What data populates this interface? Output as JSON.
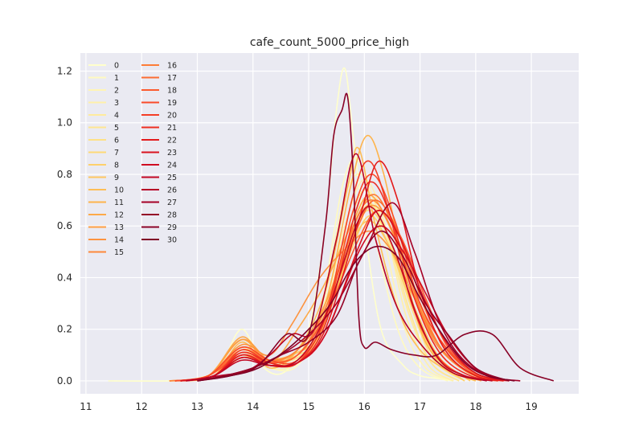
{
  "chart_data": {
    "type": "line",
    "title": "cafe_count_5000_price_high",
    "xlabel": "",
    "ylabel": "",
    "xlim": [
      10.9,
      19.85
    ],
    "ylim": [
      -0.05,
      1.27
    ],
    "xticks": [
      11,
      12,
      13,
      14,
      15,
      16,
      17,
      18,
      19
    ],
    "yticks": [
      0.0,
      0.2,
      0.4,
      0.6,
      0.8,
      1.0,
      1.2
    ],
    "xtick_labels": [
      "11",
      "12",
      "13",
      "14",
      "15",
      "16",
      "17",
      "18",
      "19"
    ],
    "ytick_labels": [
      "0.0",
      "0.2",
      "0.4",
      "0.6",
      "0.8",
      "1.0",
      "1.2"
    ],
    "grid": true,
    "legend_position": "top-left, two columns",
    "colormap": "YlOrRd",
    "series": [
      {
        "name": "0",
        "color": "#ffffcc",
        "x": [
          11.4,
          12.5,
          13.0,
          13.4,
          13.8,
          14.2,
          14.6,
          15.0,
          15.3,
          15.5,
          15.65,
          15.8,
          16.0,
          16.3,
          16.7,
          17.0,
          17.3,
          17.6
        ],
        "y": [
          0.0,
          0.0,
          0.01,
          0.05,
          0.2,
          0.05,
          0.04,
          0.2,
          0.6,
          1.05,
          1.21,
          0.95,
          0.6,
          0.2,
          0.06,
          0.02,
          0.01,
          0.0
        ]
      },
      {
        "name": "1",
        "color": "#fffac0",
        "x": [
          12.6,
          13.2,
          13.8,
          14.3,
          14.8,
          15.2,
          15.6,
          15.9,
          16.2,
          16.6,
          17.0,
          17.5
        ],
        "y": [
          0.0,
          0.02,
          0.12,
          0.05,
          0.06,
          0.25,
          0.75,
          0.85,
          0.55,
          0.2,
          0.05,
          0.0
        ]
      },
      {
        "name": "2",
        "color": "#fff5b4",
        "x": [
          12.7,
          13.3,
          13.8,
          14.3,
          14.8,
          15.2,
          15.6,
          15.95,
          16.3,
          16.7,
          17.1,
          17.6
        ],
        "y": [
          0.0,
          0.02,
          0.13,
          0.05,
          0.07,
          0.22,
          0.68,
          0.8,
          0.6,
          0.22,
          0.05,
          0.0
        ]
      },
      {
        "name": "3",
        "color": "#fff0a9",
        "x": [
          12.7,
          13.3,
          13.8,
          14.3,
          14.8,
          15.2,
          15.65,
          16.0,
          16.35,
          16.75,
          17.15,
          17.6
        ],
        "y": [
          0.0,
          0.02,
          0.12,
          0.06,
          0.07,
          0.2,
          0.6,
          0.78,
          0.62,
          0.25,
          0.06,
          0.0
        ]
      },
      {
        "name": "4",
        "color": "#ffeb9d",
        "x": [
          12.8,
          13.3,
          13.8,
          14.3,
          14.8,
          15.2,
          15.65,
          16.0,
          16.35,
          16.8,
          17.2,
          17.7
        ],
        "y": [
          0.0,
          0.02,
          0.11,
          0.06,
          0.08,
          0.2,
          0.55,
          0.74,
          0.6,
          0.26,
          0.07,
          0.0
        ]
      },
      {
        "name": "5",
        "color": "#ffe691",
        "x": [
          12.8,
          13.3,
          13.8,
          14.3,
          14.8,
          15.2,
          15.7,
          16.0,
          16.4,
          16.8,
          17.2,
          17.7
        ],
        "y": [
          0.0,
          0.02,
          0.1,
          0.06,
          0.08,
          0.18,
          0.52,
          0.7,
          0.58,
          0.28,
          0.07,
          0.0
        ]
      },
      {
        "name": "6",
        "color": "#fee186",
        "x": [
          12.8,
          13.3,
          13.8,
          14.3,
          14.8,
          15.2,
          15.7,
          16.05,
          16.4,
          16.85,
          17.25,
          17.8
        ],
        "y": [
          0.0,
          0.02,
          0.1,
          0.07,
          0.09,
          0.18,
          0.5,
          0.68,
          0.57,
          0.28,
          0.08,
          0.0
        ]
      },
      {
        "name": "7",
        "color": "#fed976",
        "x": [
          12.8,
          13.3,
          13.8,
          14.3,
          14.8,
          15.2,
          15.7,
          16.05,
          16.45,
          16.9,
          17.3,
          17.8
        ],
        "y": [
          0.0,
          0.02,
          0.09,
          0.07,
          0.1,
          0.17,
          0.48,
          0.66,
          0.55,
          0.27,
          0.08,
          0.0
        ]
      },
      {
        "name": "8",
        "color": "#fed06b",
        "x": [
          12.8,
          13.3,
          13.8,
          14.3,
          14.8,
          15.2,
          15.75,
          16.1,
          16.45,
          16.9,
          17.3,
          17.8
        ],
        "y": [
          0.0,
          0.02,
          0.09,
          0.08,
          0.11,
          0.18,
          0.5,
          0.64,
          0.52,
          0.27,
          0.09,
          0.0
        ]
      },
      {
        "name": "9",
        "color": "#fec761",
        "x": [
          12.8,
          13.3,
          13.8,
          14.3,
          14.8,
          15.25,
          15.75,
          16.1,
          16.5,
          16.95,
          17.35,
          17.9
        ],
        "y": [
          0.0,
          0.02,
          0.09,
          0.08,
          0.11,
          0.2,
          0.52,
          0.62,
          0.5,
          0.26,
          0.09,
          0.0
        ]
      },
      {
        "name": "10",
        "color": "#febe56",
        "x": [
          12.7,
          13.3,
          13.8,
          14.3,
          14.8,
          15.3,
          15.7,
          15.9,
          16.2,
          16.6,
          17.0,
          17.5,
          18.0
        ],
        "y": [
          0.0,
          0.02,
          0.15,
          0.05,
          0.12,
          0.35,
          0.75,
          0.9,
          0.6,
          0.28,
          0.12,
          0.04,
          0.0
        ]
      },
      {
        "name": "11",
        "color": "#feb44c",
        "x": [
          12.6,
          13.2,
          13.8,
          14.3,
          14.8,
          15.3,
          15.75,
          16.05,
          16.35,
          16.7,
          17.1,
          17.6,
          18.1
        ],
        "y": [
          0.0,
          0.02,
          0.16,
          0.06,
          0.12,
          0.3,
          0.75,
          0.95,
          0.8,
          0.45,
          0.15,
          0.04,
          0.0
        ]
      },
      {
        "name": "12",
        "color": "#fda948",
        "x": [
          12.5,
          13.2,
          13.8,
          14.3,
          14.8,
          15.3,
          15.8,
          16.1,
          16.45,
          16.9,
          17.3,
          17.8,
          18.3
        ],
        "y": [
          0.0,
          0.02,
          0.17,
          0.07,
          0.2,
          0.38,
          0.62,
          0.72,
          0.6,
          0.35,
          0.15,
          0.04,
          0.0
        ]
      },
      {
        "name": "13",
        "color": "#fd9e43",
        "x": [
          12.5,
          13.2,
          13.8,
          14.3,
          14.8,
          15.3,
          15.8,
          16.15,
          16.5,
          16.95,
          17.4,
          17.9,
          18.4
        ],
        "y": [
          0.0,
          0.02,
          0.16,
          0.08,
          0.12,
          0.3,
          0.58,
          0.68,
          0.58,
          0.3,
          0.12,
          0.03,
          0.0
        ]
      },
      {
        "name": "14",
        "color": "#fd933f",
        "x": [
          12.5,
          13.2,
          13.8,
          14.3,
          14.7,
          15.2,
          15.7,
          16.1,
          16.5,
          16.9,
          17.3,
          17.8,
          18.3
        ],
        "y": [
          0.0,
          0.02,
          0.14,
          0.1,
          0.22,
          0.4,
          0.52,
          0.58,
          0.5,
          0.32,
          0.14,
          0.04,
          0.0
        ]
      },
      {
        "name": "15",
        "color": "#fd883a",
        "x": [
          12.5,
          13.2,
          13.8,
          14.3,
          14.8,
          15.3,
          15.8,
          16.15,
          16.55,
          17.0,
          17.4,
          17.9,
          18.4
        ],
        "y": [
          0.0,
          0.02,
          0.13,
          0.08,
          0.12,
          0.28,
          0.6,
          0.7,
          0.56,
          0.3,
          0.12,
          0.03,
          0.0
        ]
      },
      {
        "name": "16",
        "color": "#fd7c37",
        "x": [
          12.6,
          13.2,
          13.8,
          14.3,
          14.8,
          15.3,
          15.85,
          16.2,
          16.6,
          17.0,
          17.4,
          17.9,
          18.4
        ],
        "y": [
          0.0,
          0.02,
          0.12,
          0.08,
          0.1,
          0.28,
          0.62,
          0.72,
          0.55,
          0.28,
          0.12,
          0.03,
          0.0
        ]
      },
      {
        "name": "17",
        "color": "#fc6c33",
        "x": [
          12.6,
          13.2,
          13.8,
          14.3,
          14.8,
          15.3,
          15.85,
          16.2,
          16.6,
          17.05,
          17.45,
          17.95,
          18.5
        ],
        "y": [
          0.0,
          0.02,
          0.11,
          0.07,
          0.1,
          0.26,
          0.58,
          0.7,
          0.58,
          0.3,
          0.13,
          0.03,
          0.0
        ]
      },
      {
        "name": "18",
        "color": "#fc5b2e",
        "x": [
          12.6,
          13.2,
          13.8,
          14.3,
          14.8,
          15.3,
          15.9,
          16.25,
          16.65,
          17.1,
          17.5,
          18.0,
          18.5
        ],
        "y": [
          0.0,
          0.02,
          0.1,
          0.07,
          0.1,
          0.25,
          0.55,
          0.66,
          0.56,
          0.32,
          0.13,
          0.03,
          0.0
        ]
      },
      {
        "name": "19",
        "color": "#fa4b29",
        "x": [
          12.6,
          13.2,
          13.8,
          14.3,
          14.8,
          15.3,
          15.8,
          16.15,
          16.55,
          17.0,
          17.5,
          18.0,
          18.5
        ],
        "y": [
          0.0,
          0.02,
          0.13,
          0.08,
          0.08,
          0.24,
          0.66,
          0.8,
          0.62,
          0.3,
          0.12,
          0.03,
          0.0
        ]
      },
      {
        "name": "20",
        "color": "#f43d25",
        "x": [
          12.7,
          13.3,
          13.8,
          14.3,
          14.8,
          15.3,
          15.8,
          16.1,
          16.45,
          16.85,
          17.3,
          17.8,
          18.4
        ],
        "y": [
          0.0,
          0.02,
          0.12,
          0.07,
          0.07,
          0.25,
          0.72,
          0.85,
          0.65,
          0.3,
          0.1,
          0.02,
          0.0
        ]
      },
      {
        "name": "21",
        "color": "#ed2e21",
        "x": [
          12.7,
          13.3,
          13.8,
          14.3,
          14.8,
          15.3,
          15.85,
          16.15,
          16.5,
          16.9,
          17.35,
          17.9,
          18.5
        ],
        "y": [
          0.0,
          0.02,
          0.11,
          0.07,
          0.07,
          0.22,
          0.66,
          0.77,
          0.62,
          0.32,
          0.11,
          0.02,
          0.0
        ]
      },
      {
        "name": "22",
        "color": "#e31a1c",
        "x": [
          12.7,
          13.3,
          13.8,
          14.3,
          14.8,
          15.3,
          15.9,
          16.25,
          16.6,
          17.0,
          17.45,
          18.0,
          18.6
        ],
        "y": [
          0.0,
          0.02,
          0.1,
          0.06,
          0.07,
          0.2,
          0.62,
          0.85,
          0.7,
          0.35,
          0.12,
          0.02,
          0.0
        ]
      },
      {
        "name": "23",
        "color": "#d9131f",
        "x": [
          12.7,
          13.3,
          13.8,
          14.3,
          14.8,
          15.3,
          15.9,
          16.25,
          16.65,
          17.05,
          17.5,
          18.0,
          18.6
        ],
        "y": [
          0.0,
          0.02,
          0.09,
          0.06,
          0.07,
          0.18,
          0.52,
          0.66,
          0.55,
          0.33,
          0.14,
          0.03,
          0.0
        ]
      },
      {
        "name": "24",
        "color": "#cf0c21",
        "x": [
          12.8,
          13.3,
          13.8,
          14.3,
          14.8,
          15.3,
          15.9,
          16.3,
          16.7,
          17.1,
          17.55,
          18.05,
          18.6
        ],
        "y": [
          0.0,
          0.02,
          0.09,
          0.06,
          0.07,
          0.18,
          0.5,
          0.6,
          0.5,
          0.34,
          0.16,
          0.04,
          0.0
        ]
      },
      {
        "name": "25",
        "color": "#c20824",
        "x": [
          12.8,
          13.3,
          13.8,
          14.3,
          14.8,
          15.3,
          15.85,
          16.15,
          16.55,
          16.95,
          17.35,
          17.8,
          18.3
        ],
        "y": [
          0.0,
          0.02,
          0.08,
          0.06,
          0.08,
          0.25,
          0.6,
          0.67,
          0.5,
          0.25,
          0.08,
          0.02,
          0.0
        ]
      },
      {
        "name": "26",
        "color": "#b60026",
        "x": [
          12.8,
          13.4,
          13.9,
          14.3,
          14.7,
          15.1,
          15.5,
          15.85,
          16.2,
          16.6,
          17.1,
          17.6,
          18.2
        ],
        "y": [
          0.0,
          0.02,
          0.04,
          0.1,
          0.18,
          0.2,
          0.55,
          0.88,
          0.55,
          0.28,
          0.12,
          0.03,
          0.0
        ]
      },
      {
        "name": "27",
        "color": "#a50026",
        "x": [
          13.0,
          13.5,
          14.0,
          14.5,
          15.0,
          15.5,
          16.0,
          16.5,
          16.9,
          17.3,
          17.7,
          18.2,
          18.8
        ],
        "y": [
          0.0,
          0.02,
          0.05,
          0.1,
          0.18,
          0.3,
          0.5,
          0.69,
          0.5,
          0.25,
          0.1,
          0.02,
          0.0
        ]
      },
      {
        "name": "28",
        "color": "#940026",
        "x": [
          13.0,
          13.5,
          14.0,
          14.5,
          15.0,
          15.5,
          15.9,
          16.3,
          16.7,
          17.1,
          17.5,
          18.0,
          18.6
        ],
        "y": [
          0.0,
          0.02,
          0.05,
          0.1,
          0.15,
          0.25,
          0.46,
          0.58,
          0.48,
          0.3,
          0.18,
          0.05,
          0.0
        ]
      },
      {
        "name": "29",
        "color": "#880026",
        "x": [
          13.0,
          13.6,
          14.1,
          14.6,
          15.0,
          15.3,
          15.45,
          15.6,
          15.7,
          15.8,
          15.9,
          16.0,
          16.2,
          16.5,
          16.9,
          17.3,
          17.8,
          18.3,
          18.8,
          19.4
        ],
        "y": [
          0.0,
          0.02,
          0.06,
          0.18,
          0.18,
          0.6,
          0.95,
          1.05,
          1.1,
          0.8,
          0.25,
          0.13,
          0.15,
          0.12,
          0.1,
          0.1,
          0.18,
          0.18,
          0.05,
          0.0
        ]
      },
      {
        "name": "30",
        "color": "#800026",
        "x": [
          13.0,
          13.6,
          14.1,
          14.6,
          15.0,
          15.4,
          15.8,
          16.2,
          16.6,
          17.0,
          17.4,
          17.8,
          18.2,
          18.7
        ],
        "y": [
          0.0,
          0.02,
          0.05,
          0.12,
          0.2,
          0.3,
          0.45,
          0.52,
          0.48,
          0.32,
          0.18,
          0.07,
          0.02,
          0.0
        ]
      }
    ]
  }
}
